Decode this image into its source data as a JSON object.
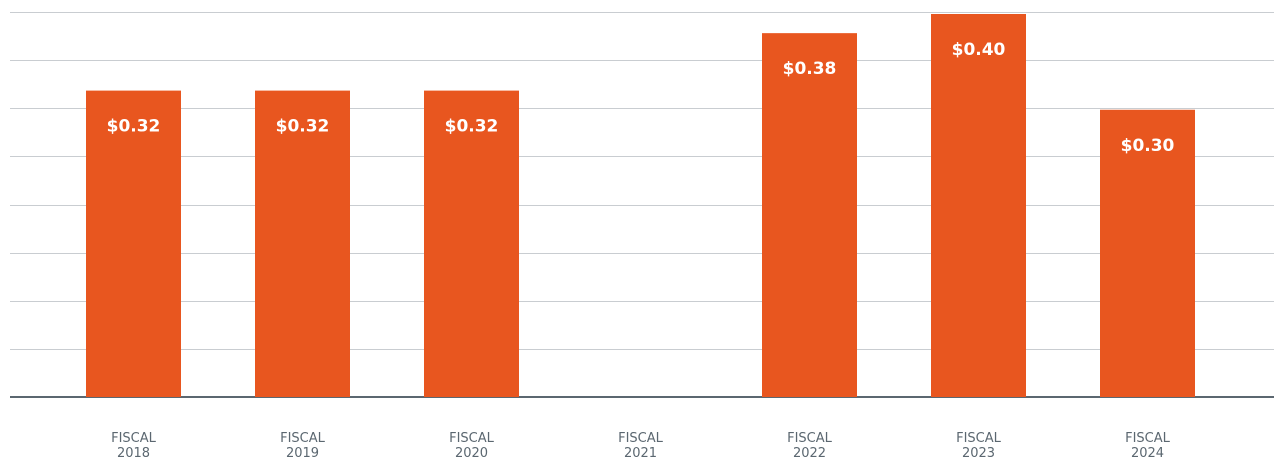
{
  "colors": {
    "bar": "#e8561f",
    "bar_label": "#ffffff",
    "tick_label": "#5b6770",
    "grid": "#c9cdd1",
    "baseline": "#5b6770"
  },
  "chart_data": {
    "type": "bar",
    "title": "",
    "xlabel": "",
    "ylabel": "",
    "grid": true,
    "legend": "none",
    "ylim": [
      0,
      0.4
    ],
    "categories": [
      [
        "FISCAL",
        "2018"
      ],
      [
        "FISCAL",
        "2019"
      ],
      [
        "FISCAL",
        "2020"
      ],
      [
        "FISCAL",
        "2021"
      ],
      [
        "FISCAL",
        "2022"
      ],
      [
        "FISCAL",
        "2023"
      ],
      [
        "FISCAL",
        "2024"
      ]
    ],
    "values": [
      0.32,
      0.32,
      0.32,
      null,
      0.38,
      0.4,
      0.3
    ],
    "data_labels": [
      "$0.32",
      "$0.32",
      "$0.32",
      "",
      "$0.38",
      "$0.40",
      "$0.30"
    ]
  }
}
